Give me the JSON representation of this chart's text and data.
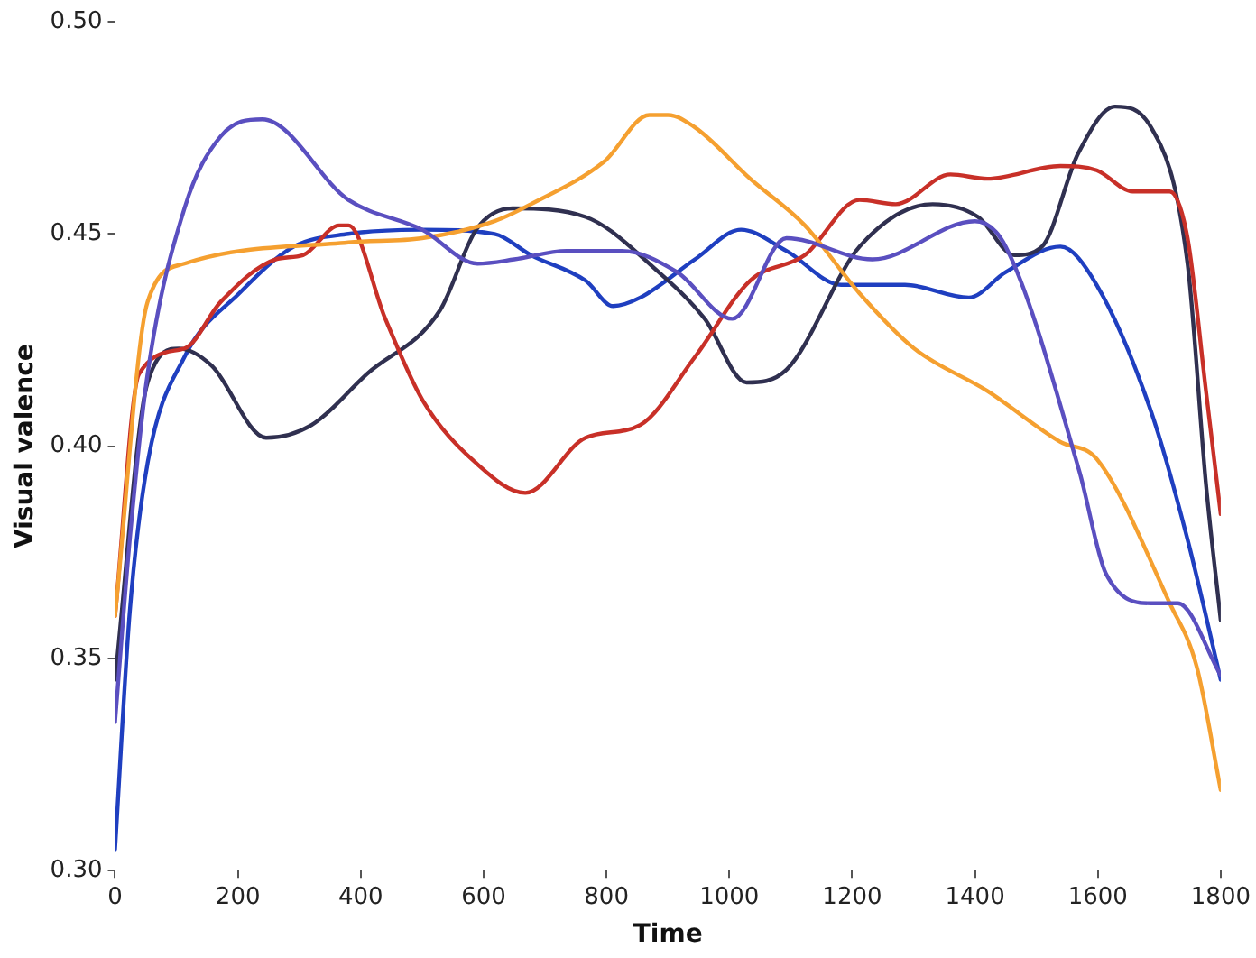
{
  "chart_data": {
    "type": "line",
    "xlabel": "Time",
    "ylabel": "Visual valence",
    "xlim": [
      0,
      1800
    ],
    "ylim": [
      0.3,
      0.5
    ],
    "xticks": [
      0,
      200,
      400,
      600,
      800,
      1000,
      1200,
      1400,
      1600,
      1800
    ],
    "yticks": [
      {
        "value": 0.3,
        "label": "0.30"
      },
      {
        "value": 0.35,
        "label": "0.35"
      },
      {
        "value": 0.4,
        "label": "0.40"
      },
      {
        "value": 0.45,
        "label": "0.45"
      },
      {
        "value": 0.5,
        "label": "0.50"
      }
    ],
    "grid": false,
    "legend": false,
    "marker": "none",
    "line_style": "solid",
    "series": [
      {
        "color": "#5a4fc0",
        "x": [
          0,
          24,
          53,
          113,
          172,
          240,
          380,
          500,
          590,
          650,
          735,
          825,
          915,
          1005,
          1093,
          1233,
          1400,
          1450,
          1570,
          1613,
          1687,
          1730,
          1800
        ],
        "values": [
          0.335,
          0.378,
          0.417,
          0.456,
          0.473,
          0.477,
          0.458,
          0.451,
          0.443,
          0.444,
          0.446,
          0.446,
          0.441,
          0.43,
          0.449,
          0.444,
          0.453,
          0.447,
          0.394,
          0.37,
          0.363,
          0.363,
          0.346
        ]
      },
      {
        "color": "#f5a030",
        "x": [
          0,
          53,
          113,
          380,
          500,
          618,
          677,
          796,
          870,
          900,
          945,
          1034,
          1123,
          1212,
          1301,
          1420,
          1539,
          1598,
          1717,
          1761,
          1800
        ],
        "values": [
          0.36,
          0.434,
          0.443,
          0.448,
          0.449,
          0.453,
          0.457,
          0.467,
          0.478,
          0.478,
          0.475,
          0.463,
          0.452,
          0.436,
          0.423,
          0.413,
          0.401,
          0.397,
          0.363,
          0.348,
          0.319
        ]
      },
      {
        "color": "#c83028",
        "x": [
          0,
          39,
          113,
          172,
          261,
          306,
          365,
          380,
          440,
          500,
          588,
          668,
          766,
          855,
          944,
          1034,
          1123,
          1212,
          1271,
          1360,
          1420,
          1539,
          1598,
          1657,
          1717,
          1746,
          1776,
          1800
        ],
        "values": [
          0.36,
          0.417,
          0.423,
          0.434,
          0.444,
          0.445,
          0.452,
          0.452,
          0.43,
          0.411,
          0.396,
          0.389,
          0.402,
          0.405,
          0.421,
          0.439,
          0.445,
          0.458,
          0.457,
          0.464,
          0.463,
          0.466,
          0.465,
          0.46,
          0.46,
          0.449,
          0.413,
          0.384
        ]
      },
      {
        "color": "#303050",
        "x": [
          0,
          53,
          104,
          157,
          246,
          320,
          410,
          529,
          588,
          647,
          766,
          885,
          960,
          1028,
          1093,
          1212,
          1331,
          1405,
          1464,
          1509,
          1568,
          1628,
          1687,
          1746,
          1776,
          1800
        ],
        "values": [
          0.345,
          0.415,
          0.423,
          0.419,
          0.402,
          0.405,
          0.417,
          0.432,
          0.451,
          0.456,
          0.454,
          0.441,
          0.43,
          0.415,
          0.418,
          0.447,
          0.457,
          0.454,
          0.445,
          0.447,
          0.469,
          0.48,
          0.475,
          0.443,
          0.391,
          0.359
        ]
      },
      {
        "color": "#1f3fc0",
        "x": [
          0,
          24,
          53,
          113,
          202,
          291,
          380,
          500,
          618,
          677,
          766,
          811,
          855,
          944,
          1019,
          1093,
          1182,
          1286,
          1390,
          1450,
          1539,
          1598,
          1687,
          1746,
          1800
        ],
        "values": [
          0.305,
          0.361,
          0.396,
          0.421,
          0.436,
          0.447,
          0.45,
          0.451,
          0.45,
          0.445,
          0.439,
          0.433,
          0.435,
          0.444,
          0.451,
          0.446,
          0.438,
          0.438,
          0.435,
          0.441,
          0.447,
          0.438,
          0.408,
          0.378,
          0.345
        ]
      }
    ]
  }
}
